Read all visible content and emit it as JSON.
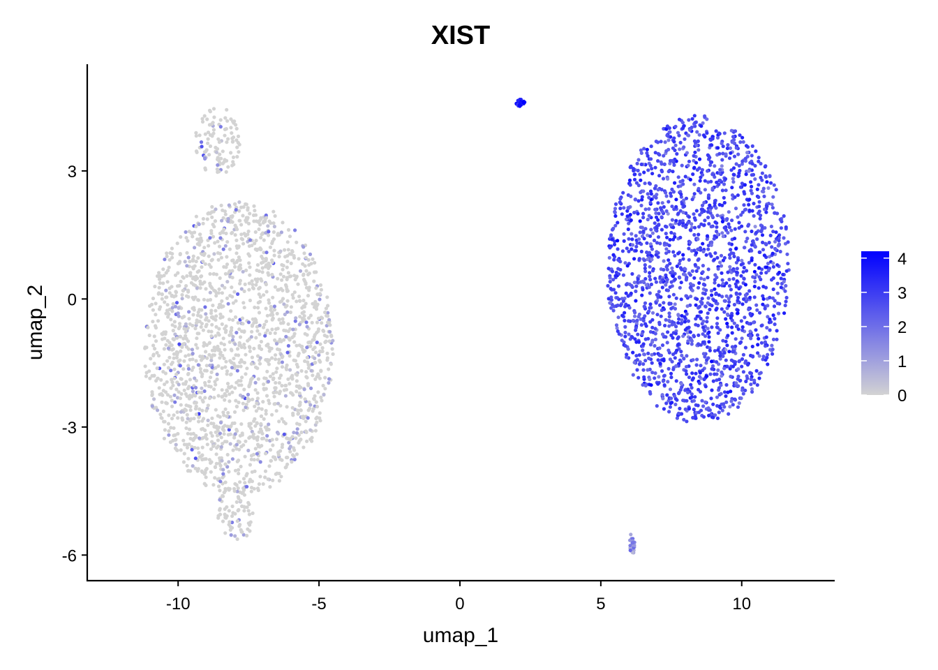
{
  "chart_data": {
    "type": "scatter",
    "title": "XIST",
    "xlabel": "umap_1",
    "ylabel": "umap_2",
    "xlim": [
      -13.2,
      13.3
    ],
    "ylim": [
      -6.6,
      5.5
    ],
    "x_ticks": [
      -10,
      -5,
      0,
      5,
      10
    ],
    "x_tick_labels": [
      "-10",
      "-5",
      "0",
      "5",
      "10"
    ],
    "y_ticks": [
      -6,
      -3,
      0,
      3
    ],
    "y_tick_labels": [
      "-6",
      "-3",
      "0",
      "3"
    ],
    "grid": false,
    "legend_position": "right",
    "color_scale": {
      "low_color": "#d3d3d3",
      "high_color": "#0000ff",
      "min": 0,
      "max": 4.2,
      "ticks": [
        0,
        1,
        2,
        3,
        4
      ],
      "tick_labels": [
        "0",
        "1",
        "2",
        "3",
        "4"
      ]
    },
    "series": [
      {
        "clusters": [
          {
            "region": "left-main-body",
            "x_center": -7.5,
            "y_center": -0.5,
            "x_range": [
              -11.2,
              -4.5
            ],
            "y_range": [
              -4.6,
              2.3
            ],
            "expression_level": "low",
            "mean_expression": 0.15
          },
          {
            "region": "left-top-lobe",
            "x_center": -8.6,
            "y_center": 3.6,
            "x_range": [
              -9.4,
              -7.8
            ],
            "y_range": [
              2.9,
              4.5
            ],
            "expression_level": "low",
            "mean_expression": 0.35
          },
          {
            "region": "left-bottom-lobe",
            "x_center": -8.0,
            "y_center": -5.0,
            "x_range": [
              -8.6,
              -7.3
            ],
            "y_range": [
              -5.7,
              -4.3
            ],
            "expression_level": "low",
            "mean_expression": 0.25
          },
          {
            "region": "right-main-body",
            "x_center": 8.3,
            "y_center": 0.8,
            "x_range": [
              5.2,
              11.7
            ],
            "y_range": [
              -2.9,
              4.3
            ],
            "expression_level": "high",
            "mean_expression": 2.7
          },
          {
            "region": "top-small-cluster",
            "x_center": 2.2,
            "y_center": 4.6,
            "x_range": [
              2.0,
              2.3
            ],
            "y_range": [
              4.5,
              4.7
            ],
            "expression_level": "high",
            "mean_expression": 3.8
          },
          {
            "region": "bottom-small-cluster",
            "x_center": 6.1,
            "y_center": -5.8,
            "x_range": [
              6.0,
              6.2
            ],
            "y_range": [
              -6.0,
              -5.5
            ],
            "expression_level": "medium",
            "mean_expression": 1.3
          }
        ]
      }
    ]
  }
}
